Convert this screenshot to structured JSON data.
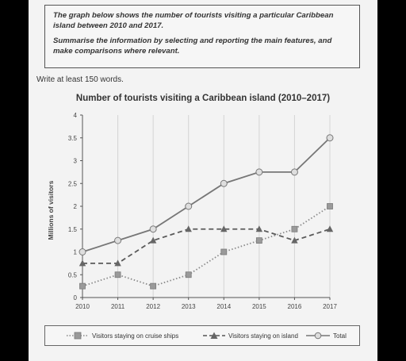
{
  "task": {
    "paragraph1": "The graph below shows the number of tourists visiting a particular Caribbean island between 2010 and 2017.",
    "paragraph2": "Summarise the information by selecting and reporting the main features, and make comparisons where relevant."
  },
  "instruction": "Write at least 150 words.",
  "chart_data": {
    "type": "line",
    "title": "Number of tourists visiting a Caribbean island (2010–2017)",
    "ylabel": "Millions of visitors",
    "xlabel": "",
    "x": [
      "2010",
      "2011",
      "2012",
      "2013",
      "2014",
      "2015",
      "2016",
      "2017"
    ],
    "ylim": [
      0,
      4
    ],
    "yticks": [
      "0",
      "0.5",
      "1",
      "1.5",
      "2",
      "2.5",
      "3",
      "3.5",
      "4"
    ],
    "grid": "vertical",
    "legend_position": "bottom",
    "series": [
      {
        "name": "Visitors staying on cruise ships",
        "marker": "square",
        "line": "dotted",
        "values": [
          0.25,
          0.5,
          0.25,
          0.5,
          1.0,
          1.25,
          1.5,
          2.0
        ]
      },
      {
        "name": "Visitors staying on island",
        "marker": "triangle",
        "line": "dashed",
        "values": [
          0.75,
          0.75,
          1.25,
          1.5,
          1.5,
          1.5,
          1.25,
          1.5
        ]
      },
      {
        "name": "Total",
        "marker": "circle",
        "line": "solid",
        "values": [
          1.0,
          1.25,
          1.5,
          2.0,
          2.5,
          2.75,
          2.75,
          3.5
        ]
      }
    ]
  }
}
